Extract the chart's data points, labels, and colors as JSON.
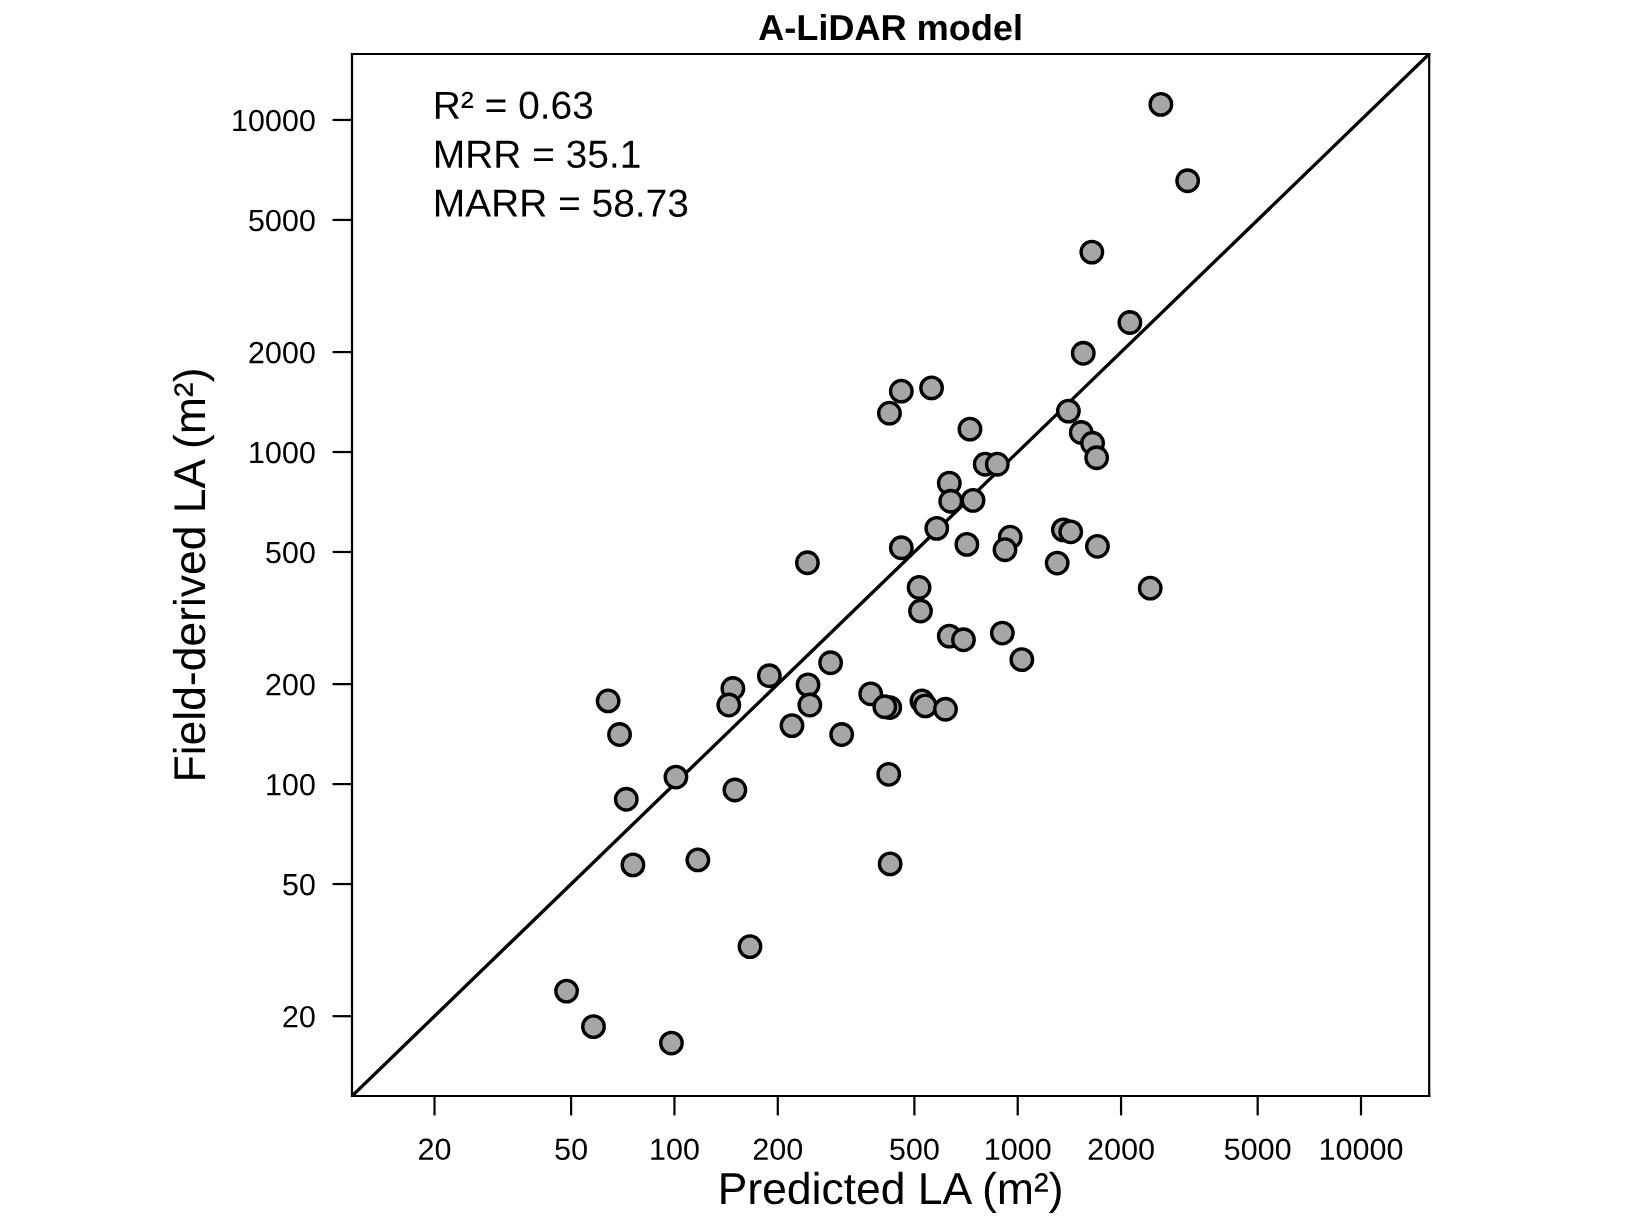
{
  "chart_data": {
    "type": "scatter",
    "title": "A-LiDAR model",
    "xlabel": "Predicted LA (m²)",
    "ylabel": "Field-derived LA (m²)",
    "annotations": [
      "R² = 0.63",
      "MRR = 35.1",
      "MARR = 58.73"
    ],
    "log": "xy",
    "grid": false,
    "legend": false,
    "marker": "circle",
    "xlim": [
      11.5,
      15800
    ],
    "ylim": [
      11.5,
      15800
    ],
    "xticks": [
      20,
      50,
      100,
      200,
      500,
      1000,
      2000,
      5000,
      10000
    ],
    "yticks": [
      20,
      50,
      100,
      200,
      500,
      1000,
      2000,
      5000,
      10000
    ],
    "series": [
      {
        "color": "#a6a6a6",
        "x": [
          2612,
          3126,
          1644,
          2122,
          1552,
          458,
          561,
          423,
          726,
          1405,
          1531,
          1652,
          1698,
          804,
          872,
          632,
          638,
          741,
          581,
          458,
          711,
          951,
          918,
          1358,
          1427,
          1707,
          1303,
          516,
          521,
          632,
          695,
          902,
          1028,
          2432,
          526,
          538,
          616,
          424,
          421,
          425,
          244,
          285,
          189,
          245,
          248,
          220,
          307,
          373,
          410,
          148,
          144,
          64.1,
          69.2,
          101,
          150,
          72.4,
          75.7,
          117,
          166,
          48.5,
          58.1,
          98
        ],
        "values": [
          11140,
          6560,
          4000,
          2455,
          1983,
          1525,
          1560,
          1309,
          1172,
          1328,
          1145,
          1063,
          961,
          919,
          919,
          806,
          711,
          715,
          589,
          515,
          527,
          554,
          508,
          583,
          575,
          520,
          463,
          391,
          332,
          279,
          272,
          285,
          237,
          389,
          178,
          172,
          168,
          170,
          107,
          57.5,
          464,
          232,
          212,
          199,
          173,
          150,
          141,
          187,
          171,
          194,
          173,
          178,
          141,
          105,
          96,
          90,
          57.1,
          59.1,
          32.4,
          23.8,
          18.6,
          16.6
        ]
      },
      {
        "type": "line",
        "color": "#000000",
        "marker": "none",
        "line_style": "solid",
        "x": [
          11.5,
          15800
        ],
        "values": [
          11.5,
          15800
        ]
      }
    ]
  }
}
